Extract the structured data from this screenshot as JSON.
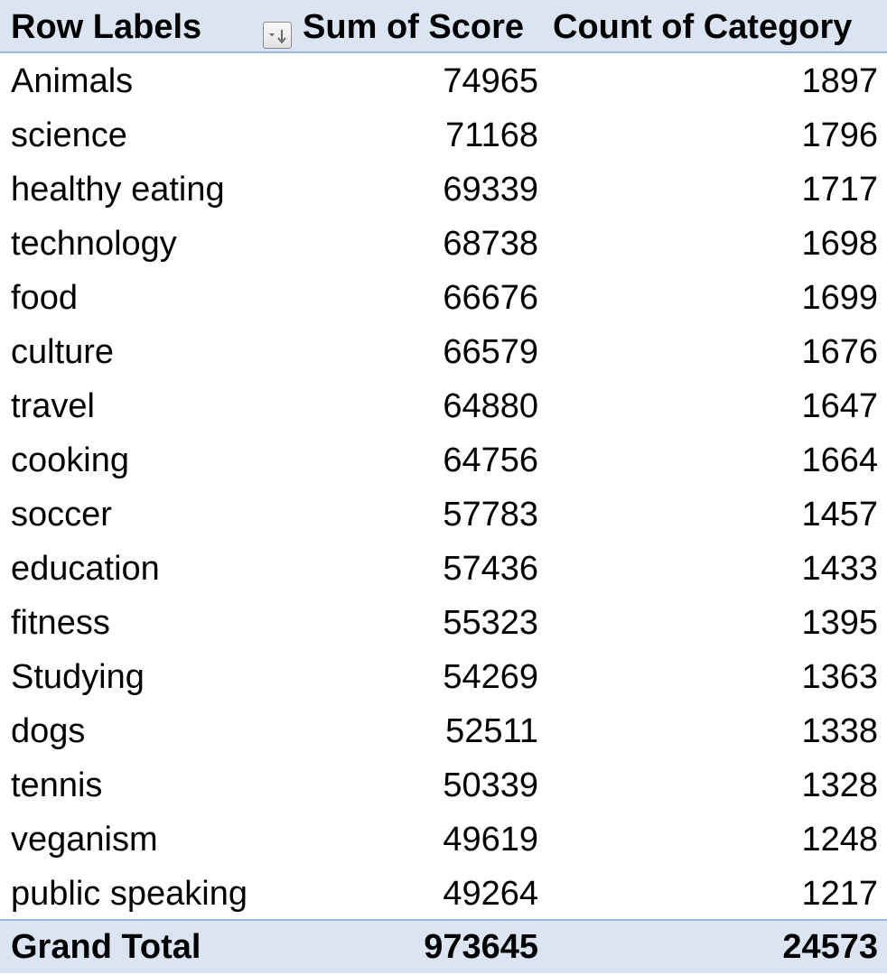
{
  "header": {
    "row_labels": "Row Labels",
    "sum_of_score": "Sum of Score",
    "count_of_category": "Count of Category",
    "sort_icon": "sort-descending-dropdown-icon"
  },
  "rows": [
    {
      "label": "Animals",
      "score": "74965",
      "count": "1897"
    },
    {
      "label": "science",
      "score": "71168",
      "count": "1796"
    },
    {
      "label": "healthy eating",
      "score": "69339",
      "count": "1717"
    },
    {
      "label": "technology",
      "score": "68738",
      "count": "1698"
    },
    {
      "label": "food",
      "score": "66676",
      "count": "1699"
    },
    {
      "label": "culture",
      "score": "66579",
      "count": "1676"
    },
    {
      "label": "travel",
      "score": "64880",
      "count": "1647"
    },
    {
      "label": "cooking",
      "score": "64756",
      "count": "1664"
    },
    {
      "label": "soccer",
      "score": "57783",
      "count": "1457"
    },
    {
      "label": "education",
      "score": "57436",
      "count": "1433"
    },
    {
      "label": "fitness",
      "score": "55323",
      "count": "1395"
    },
    {
      "label": "Studying",
      "score": "54269",
      "count": "1363"
    },
    {
      "label": "dogs",
      "score": "52511",
      "count": "1338"
    },
    {
      "label": "tennis",
      "score": "50339",
      "count": "1328"
    },
    {
      "label": "veganism",
      "score": "49619",
      "count": "1248"
    },
    {
      "label": "public speaking",
      "score": "49264",
      "count": "1217"
    }
  ],
  "total": {
    "label": "Grand Total",
    "score": "973645",
    "count": "24573"
  },
  "colors": {
    "header_bg": "#dbe4f3",
    "header_border": "#9fb6dc"
  }
}
